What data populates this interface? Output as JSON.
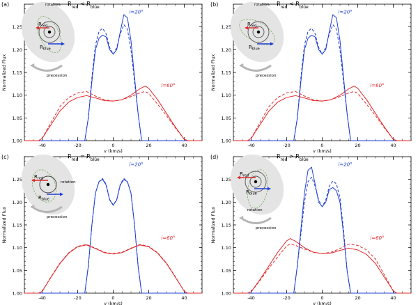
{
  "figure": {
    "colors": {
      "blue": "#1f3fd6",
      "red": "#e0282a",
      "axis": "#000000",
      "inset_bg": "#e4e4e4",
      "ring": "#555555",
      "green": "#6aa84f",
      "arrow_gray": "#b5b5b5"
    }
  },
  "chart_data": [
    {
      "panel": "(a)",
      "type": "line",
      "title": "",
      "xlabel": "v (km/s)",
      "ylabel": "Normalized Flux",
      "xlim": [
        -50,
        50
      ],
      "ylim": [
        1.0,
        1.3
      ],
      "xticks": [
        -40,
        -20,
        0,
        20,
        40
      ],
      "xtick_labels": [
        "-40",
        "-20",
        "0",
        "20",
        "40"
      ],
      "yticks": [
        1.0,
        1.05,
        1.1,
        1.15,
        1.2,
        1.25
      ],
      "ytick_labels": [
        "1.00",
        "1.05",
        "1.10",
        "1.15",
        "1.20",
        "1.25"
      ],
      "legend": [],
      "annotations": {
        "blue_label": "i=20°",
        "red_label": "i=60°"
      },
      "inset": {
        "relation_html": "R<tspan baseline-shift='sub' font-size='6'>red</tspan> &lt; R<tspan baseline-shift='sub' font-size='6'>blue</tspan>",
        "relation_text": "Rred<Rblue",
        "rotation": "rotation",
        "precession": "precession",
        "r_red": "Rred",
        "r_blue": "Rblue"
      },
      "series": [
        {
          "name": "i=20° solid",
          "color": "blue",
          "dash": false,
          "x": [
            -50,
            -16,
            -14,
            -12,
            -10,
            -8,
            -6,
            -4,
            -2,
            0,
            2,
            4,
            6,
            8,
            10,
            12,
            14,
            16,
            50
          ],
          "y": [
            1.0,
            1.0,
            1.05,
            1.13,
            1.2,
            1.225,
            1.232,
            1.228,
            1.2,
            1.19,
            1.2,
            1.24,
            1.277,
            1.27,
            1.22,
            1.14,
            1.06,
            1.0,
            1.0
          ]
        },
        {
          "name": "i=20° dashed",
          "color": "blue",
          "dash": true,
          "x": [
            -50,
            -16,
            -14,
            -12,
            -10,
            -8,
            -6,
            -4,
            -2,
            0,
            2,
            4,
            6,
            8,
            10,
            12,
            14,
            16,
            50
          ],
          "y": [
            1.0,
            1.0,
            1.05,
            1.14,
            1.21,
            1.24,
            1.247,
            1.235,
            1.205,
            1.19,
            1.205,
            1.235,
            1.255,
            1.245,
            1.2,
            1.13,
            1.06,
            1.0,
            1.0
          ]
        },
        {
          "name": "i=60° solid",
          "color": "red",
          "dash": false,
          "x": [
            -50,
            -42,
            -40,
            -35,
            -30,
            -25,
            -20,
            -15,
            -10,
            -5,
            0,
            5,
            10,
            15,
            18,
            20,
            25,
            30,
            35,
            40,
            42,
            50
          ],
          "y": [
            1.0,
            1.0,
            1.005,
            1.035,
            1.065,
            1.085,
            1.095,
            1.099,
            1.094,
            1.088,
            1.087,
            1.09,
            1.1,
            1.114,
            1.12,
            1.115,
            1.09,
            1.06,
            1.03,
            1.003,
            1.0,
            1.0
          ]
        },
        {
          "name": "i=60° dashed",
          "color": "red",
          "dash": true,
          "x": [
            -50,
            -42,
            -40,
            -35,
            -30,
            -25,
            -20,
            -15,
            -10,
            -5,
            0,
            5,
            10,
            15,
            18,
            20,
            25,
            30,
            35,
            40,
            42,
            50
          ],
          "y": [
            1.0,
            1.0,
            1.005,
            1.04,
            1.075,
            1.095,
            1.105,
            1.108,
            1.098,
            1.09,
            1.087,
            1.09,
            1.097,
            1.105,
            1.108,
            1.104,
            1.08,
            1.055,
            1.028,
            1.003,
            1.0,
            1.0
          ]
        }
      ]
    },
    {
      "panel": "(b)",
      "type": "line",
      "title": "",
      "xlabel": "v (km/s)",
      "ylabel": "Normalized Flux",
      "xlim": [
        -50,
        50
      ],
      "ylim": [
        1.0,
        1.3
      ],
      "xticks": [
        -40,
        -20,
        0,
        20,
        40
      ],
      "xtick_labels": [
        "-40",
        "-20",
        "0",
        "20",
        "40"
      ],
      "yticks": [
        1.0,
        1.05,
        1.1,
        1.15,
        1.2,
        1.25
      ],
      "ytick_labels": [
        "1.00",
        "1.05",
        "1.10",
        "1.15",
        "1.20",
        "1.25"
      ],
      "legend": [],
      "annotations": {
        "blue_label": "i=20°",
        "red_label": "i=60°"
      },
      "inset": {
        "relation_html": "R<tspan baseline-shift='sub' font-size='6'>red</tspan> &lt; R<tspan baseline-shift='sub' font-size='6'>blue</tspan>",
        "relation_text": "Rred<Rblue",
        "rotation": "rotation",
        "precession": "precession",
        "r_red": "Rred",
        "r_blue": "Rblue"
      },
      "series": [
        {
          "name": "i=20° solid",
          "color": "blue",
          "dash": false,
          "x": [
            -50,
            -16,
            -14,
            -12,
            -10,
            -8,
            -6,
            -4,
            -2,
            0,
            2,
            4,
            6,
            8,
            10,
            12,
            14,
            16,
            50
          ],
          "y": [
            1.0,
            1.0,
            1.05,
            1.13,
            1.2,
            1.225,
            1.232,
            1.228,
            1.2,
            1.19,
            1.2,
            1.24,
            1.277,
            1.27,
            1.22,
            1.14,
            1.06,
            1.0,
            1.0
          ]
        },
        {
          "name": "i=20° dashed",
          "color": "blue",
          "dash": true,
          "x": [
            -50,
            -16,
            -14,
            -12,
            -10,
            -8,
            -6,
            -4,
            -2,
            0,
            2,
            4,
            6,
            8,
            10,
            12,
            14,
            16,
            50
          ],
          "y": [
            1.0,
            1.0,
            1.05,
            1.14,
            1.21,
            1.24,
            1.247,
            1.235,
            1.205,
            1.19,
            1.205,
            1.235,
            1.255,
            1.245,
            1.2,
            1.13,
            1.06,
            1.0,
            1.0
          ]
        },
        {
          "name": "i=60° solid",
          "color": "red",
          "dash": false,
          "x": [
            -50,
            -42,
            -40,
            -35,
            -30,
            -25,
            -20,
            -15,
            -10,
            -5,
            0,
            5,
            10,
            15,
            18,
            20,
            25,
            30,
            35,
            40,
            42,
            50
          ],
          "y": [
            1.0,
            1.0,
            1.005,
            1.035,
            1.065,
            1.085,
            1.095,
            1.099,
            1.094,
            1.088,
            1.087,
            1.09,
            1.1,
            1.114,
            1.12,
            1.115,
            1.09,
            1.06,
            1.03,
            1.003,
            1.0,
            1.0
          ]
        },
        {
          "name": "i=60° dashed",
          "color": "red",
          "dash": true,
          "x": [
            -50,
            -42,
            -40,
            -35,
            -30,
            -25,
            -20,
            -15,
            -10,
            -5,
            0,
            5,
            10,
            15,
            18,
            20,
            25,
            30,
            35,
            40,
            42,
            50
          ],
          "y": [
            1.0,
            1.0,
            1.005,
            1.04,
            1.075,
            1.095,
            1.105,
            1.108,
            1.098,
            1.09,
            1.087,
            1.09,
            1.097,
            1.105,
            1.108,
            1.104,
            1.08,
            1.055,
            1.028,
            1.003,
            1.0,
            1.0
          ]
        }
      ]
    },
    {
      "panel": "(c)",
      "type": "line",
      "title": "",
      "xlabel": "v (km/s)",
      "ylabel": "Normalized Flux",
      "xlim": [
        -50,
        50
      ],
      "ylim": [
        1.0,
        1.3
      ],
      "xticks": [
        -40,
        -20,
        0,
        20,
        40
      ],
      "xtick_labels": [
        "-40",
        "-20",
        "0",
        "20",
        "40"
      ],
      "yticks": [
        1.0,
        1.05,
        1.1,
        1.15,
        1.2,
        1.25
      ],
      "ytick_labels": [
        "1.00",
        "1.05",
        "1.10",
        "1.15",
        "1.20",
        "1.25"
      ],
      "legend": [],
      "annotations": {
        "blue_label": "i=20°",
        "red_label": "i=60°"
      },
      "inset": {
        "relation_html": "R<tspan baseline-shift='sub' font-size='6'>red</tspan> = R<tspan baseline-shift='sub' font-size='6'>blue</tspan>",
        "relation_text": "Rred=Rblue",
        "rotation": "rotation",
        "precession": "precession",
        "r_red": "Rred",
        "r_blue": "Rblue"
      },
      "series": [
        {
          "name": "i=20° solid",
          "color": "blue",
          "dash": false,
          "x": [
            -50,
            -16,
            -14,
            -12,
            -10,
            -8,
            -6,
            -4,
            -2,
            0,
            2,
            4,
            6,
            8,
            10,
            12,
            14,
            16,
            50
          ],
          "y": [
            1.0,
            1.0,
            1.06,
            1.15,
            1.22,
            1.245,
            1.25,
            1.238,
            1.205,
            1.193,
            1.205,
            1.238,
            1.25,
            1.245,
            1.22,
            1.15,
            1.06,
            1.0,
            1.0
          ]
        },
        {
          "name": "i=20° dashed",
          "color": "blue",
          "dash": true,
          "x": [
            -50,
            -16,
            -14,
            -12,
            -10,
            -8,
            -6,
            -4,
            -2,
            0,
            2,
            4,
            6,
            8,
            10,
            12,
            14,
            16,
            50
          ],
          "y": [
            1.0,
            1.0,
            1.06,
            1.15,
            1.22,
            1.245,
            1.252,
            1.24,
            1.206,
            1.194,
            1.206,
            1.24,
            1.252,
            1.245,
            1.22,
            1.15,
            1.06,
            1.0,
            1.0
          ]
        },
        {
          "name": "i=60° solid",
          "color": "red",
          "dash": false,
          "x": [
            -50,
            -42,
            -40,
            -35,
            -30,
            -25,
            -20,
            -15,
            -10,
            -5,
            0,
            5,
            10,
            15,
            20,
            25,
            30,
            35,
            40,
            42,
            50
          ],
          "y": [
            1.0,
            1.0,
            1.004,
            1.035,
            1.065,
            1.088,
            1.102,
            1.106,
            1.098,
            1.089,
            1.086,
            1.089,
            1.098,
            1.106,
            1.102,
            1.088,
            1.065,
            1.035,
            1.004,
            1.0,
            1.0
          ]
        },
        {
          "name": "i=60° dashed",
          "color": "red",
          "dash": true,
          "x": [
            -50,
            -42,
            -40,
            -35,
            -30,
            -25,
            -20,
            -15,
            -10,
            -5,
            0,
            5,
            10,
            15,
            20,
            25,
            30,
            35,
            40,
            42,
            50
          ],
          "y": [
            1.0,
            1.0,
            1.004,
            1.036,
            1.066,
            1.089,
            1.103,
            1.107,
            1.099,
            1.09,
            1.087,
            1.09,
            1.099,
            1.107,
            1.103,
            1.089,
            1.066,
            1.036,
            1.004,
            1.0,
            1.0
          ]
        }
      ]
    },
    {
      "panel": "(d)",
      "type": "line",
      "title": "",
      "xlabel": "v (km/s)",
      "ylabel": "Normalized Flux",
      "xlim": [
        -50,
        50
      ],
      "ylim": [
        1.0,
        1.3
      ],
      "xticks": [
        -40,
        -20,
        0,
        20,
        40
      ],
      "xtick_labels": [
        "-40",
        "-20",
        "0",
        "20",
        "40"
      ],
      "yticks": [
        1.0,
        1.05,
        1.1,
        1.15,
        1.2,
        1.25
      ],
      "ytick_labels": [
        "1.00",
        "1.05",
        "1.10",
        "1.15",
        "1.20",
        "1.25"
      ],
      "legend": [],
      "annotations": {
        "blue_label": "i=20°",
        "red_label": "i=60°"
      },
      "inset": {
        "relation_html": "R<tspan baseline-shift='sub' font-size='6'>red</tspan> &gt; R<tspan baseline-shift='sub' font-size='6'>blue</tspan>",
        "relation_text": "Rred>Rblue",
        "rotation": "rotation",
        "precession": "precession",
        "r_red": "Rred",
        "r_blue": "Rblue"
      },
      "series": [
        {
          "name": "i=20° solid",
          "color": "blue",
          "dash": false,
          "x": [
            -50,
            -16,
            -14,
            -12,
            -10,
            -8,
            -6,
            -4,
            -2,
            0,
            2,
            4,
            6,
            8,
            10,
            12,
            14,
            16,
            50
          ],
          "y": [
            1.0,
            1.0,
            1.06,
            1.14,
            1.22,
            1.27,
            1.277,
            1.24,
            1.2,
            1.19,
            1.2,
            1.228,
            1.232,
            1.225,
            1.2,
            1.13,
            1.05,
            1.0,
            1.0
          ]
        },
        {
          "name": "i=20° dashed",
          "color": "blue",
          "dash": true,
          "x": [
            -50,
            -16,
            -14,
            -12,
            -10,
            -8,
            -6,
            -4,
            -2,
            0,
            2,
            4,
            6,
            8,
            10,
            12,
            14,
            16,
            50
          ],
          "y": [
            1.0,
            1.0,
            1.06,
            1.13,
            1.2,
            1.245,
            1.255,
            1.235,
            1.205,
            1.19,
            1.205,
            1.235,
            1.247,
            1.24,
            1.21,
            1.14,
            1.05,
            1.0,
            1.0
          ]
        },
        {
          "name": "i=60° solid",
          "color": "red",
          "dash": false,
          "x": [
            -50,
            -42,
            -40,
            -35,
            -30,
            -25,
            -20,
            -18,
            -15,
            -10,
            -5,
            0,
            5,
            10,
            15,
            20,
            25,
            30,
            35,
            40,
            42,
            50
          ],
          "y": [
            1.0,
            1.0,
            1.003,
            1.03,
            1.06,
            1.09,
            1.115,
            1.12,
            1.114,
            1.1,
            1.09,
            1.087,
            1.088,
            1.094,
            1.099,
            1.095,
            1.085,
            1.065,
            1.035,
            1.005,
            1.0,
            1.0
          ]
        },
        {
          "name": "i=60° dashed",
          "color": "red",
          "dash": true,
          "x": [
            -50,
            -42,
            -40,
            -35,
            -30,
            -25,
            -20,
            -18,
            -15,
            -10,
            -5,
            0,
            5,
            10,
            15,
            20,
            25,
            30,
            35,
            40,
            42,
            50
          ],
          "y": [
            1.0,
            1.0,
            1.003,
            1.028,
            1.055,
            1.08,
            1.104,
            1.108,
            1.105,
            1.097,
            1.09,
            1.087,
            1.09,
            1.098,
            1.108,
            1.105,
            1.095,
            1.075,
            1.04,
            1.005,
            1.0,
            1.0
          ]
        }
      ]
    }
  ]
}
